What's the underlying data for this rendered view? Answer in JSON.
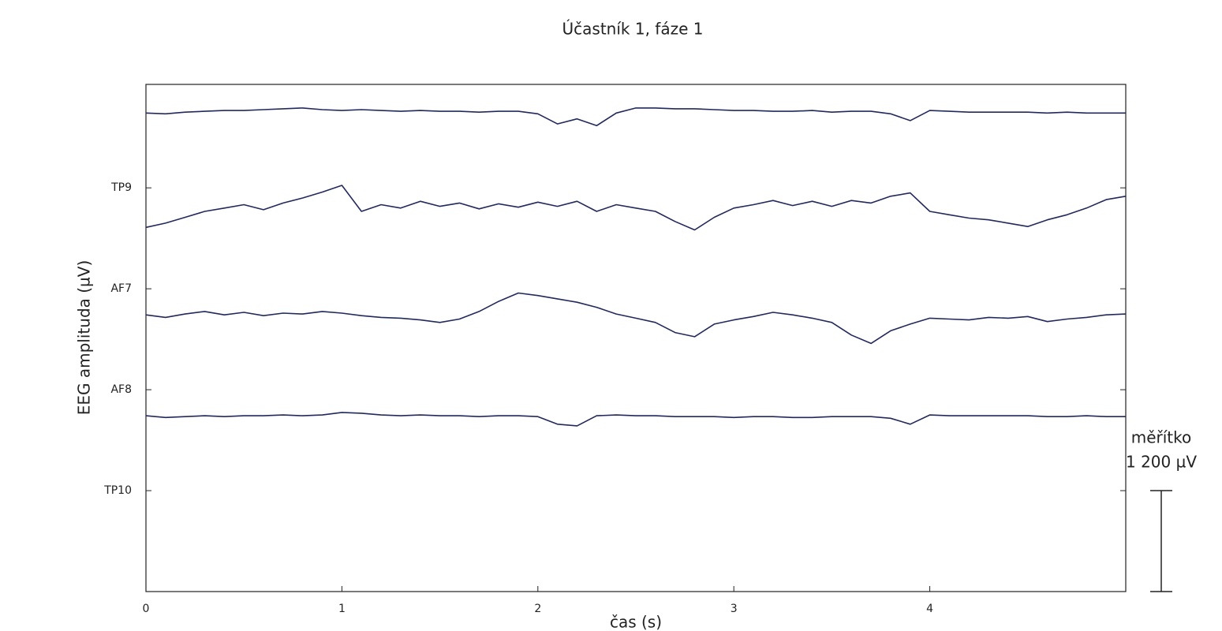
{
  "chart_data": {
    "type": "line",
    "title": "Účastník 1, fáze 1",
    "x_label": "čas (s)",
    "y_label": "EEG amplituda (µV)",
    "xlim": [
      0,
      5
    ],
    "xticks": [
      0,
      1,
      2,
      3,
      4
    ],
    "ylim": [
      0,
      6030
    ],
    "yticks": [
      {
        "value": 1200,
        "label": "TP10"
      },
      {
        "value": 2400,
        "label": "AF8"
      },
      {
        "value": 3600,
        "label": "AF7"
      },
      {
        "value": 4800,
        "label": "TP9"
      }
    ],
    "x": [
      0,
      0.1,
      0.2,
      0.3,
      0.4,
      0.5,
      0.6,
      0.7,
      0.8,
      0.9,
      1,
      1.1,
      1.2,
      1.3,
      1.4,
      1.5,
      1.6,
      1.7,
      1.8,
      1.9,
      2,
      2.1,
      2.2,
      2.3,
      2.4,
      2.5,
      2.6,
      2.7,
      2.8,
      2.9,
      3,
      3.1,
      3.2,
      3.3,
      3.4,
      3.5,
      3.6,
      3.7,
      3.8,
      3.9,
      4,
      4.1,
      4.2,
      4.3,
      4.4,
      4.5,
      4.6,
      4.7,
      4.8,
      4.9,
      5
    ],
    "series": [
      {
        "color": "#22295c",
        "values": [
          5690,
          5680,
          5700,
          5710,
          5720,
          5720,
          5730,
          5740,
          5750,
          5730,
          5720,
          5730,
          5720,
          5710,
          5720,
          5710,
          5710,
          5700,
          5710,
          5710,
          5680,
          5560,
          5620,
          5540,
          5690,
          5750,
          5750,
          5740,
          5740,
          5730,
          5720,
          5720,
          5710,
          5710,
          5720,
          5700,
          5710,
          5710,
          5680,
          5600,
          5720,
          5710,
          5700,
          5700,
          5700,
          5700,
          5690,
          5700,
          5690,
          5690,
          5690
        ]
      },
      {
        "color": "#22295c",
        "values": [
          4330,
          4380,
          4450,
          4520,
          4560,
          4600,
          4540,
          4620,
          4680,
          4750,
          4830,
          4520,
          4600,
          4560,
          4640,
          4580,
          4620,
          4550,
          4610,
          4570,
          4630,
          4580,
          4640,
          4520,
          4600,
          4560,
          4520,
          4400,
          4300,
          4450,
          4560,
          4600,
          4650,
          4590,
          4640,
          4580,
          4650,
          4620,
          4700,
          4740,
          4520,
          4480,
          4440,
          4420,
          4380,
          4340,
          4420,
          4480,
          4560,
          4660,
          4700
        ]
      },
      {
        "color": "#22295c",
        "values": [
          3290,
          3260,
          3300,
          3330,
          3290,
          3320,
          3280,
          3310,
          3300,
          3330,
          3310,
          3280,
          3260,
          3250,
          3230,
          3200,
          3240,
          3330,
          3450,
          3550,
          3520,
          3480,
          3440,
          3380,
          3300,
          3250,
          3200,
          3080,
          3030,
          3180,
          3230,
          3270,
          3320,
          3290,
          3250,
          3200,
          3050,
          2950,
          3100,
          3180,
          3250,
          3240,
          3230,
          3260,
          3250,
          3270,
          3210,
          3240,
          3260,
          3290,
          3300
        ]
      },
      {
        "color": "#22295c",
        "values": [
          2090,
          2070,
          2080,
          2090,
          2080,
          2090,
          2090,
          2100,
          2090,
          2100,
          2130,
          2120,
          2100,
          2090,
          2100,
          2090,
          2090,
          2080,
          2090,
          2090,
          2080,
          1990,
          1970,
          2090,
          2100,
          2090,
          2090,
          2080,
          2080,
          2080,
          2070,
          2080,
          2080,
          2070,
          2070,
          2080,
          2080,
          2080,
          2060,
          1990,
          2100,
          2090,
          2090,
          2090,
          2090,
          2090,
          2080,
          2080,
          2090,
          2080,
          2080
        ]
      }
    ],
    "scale": {
      "title": "měřítko",
      "label": "1 200 µV",
      "value": 1200
    }
  }
}
